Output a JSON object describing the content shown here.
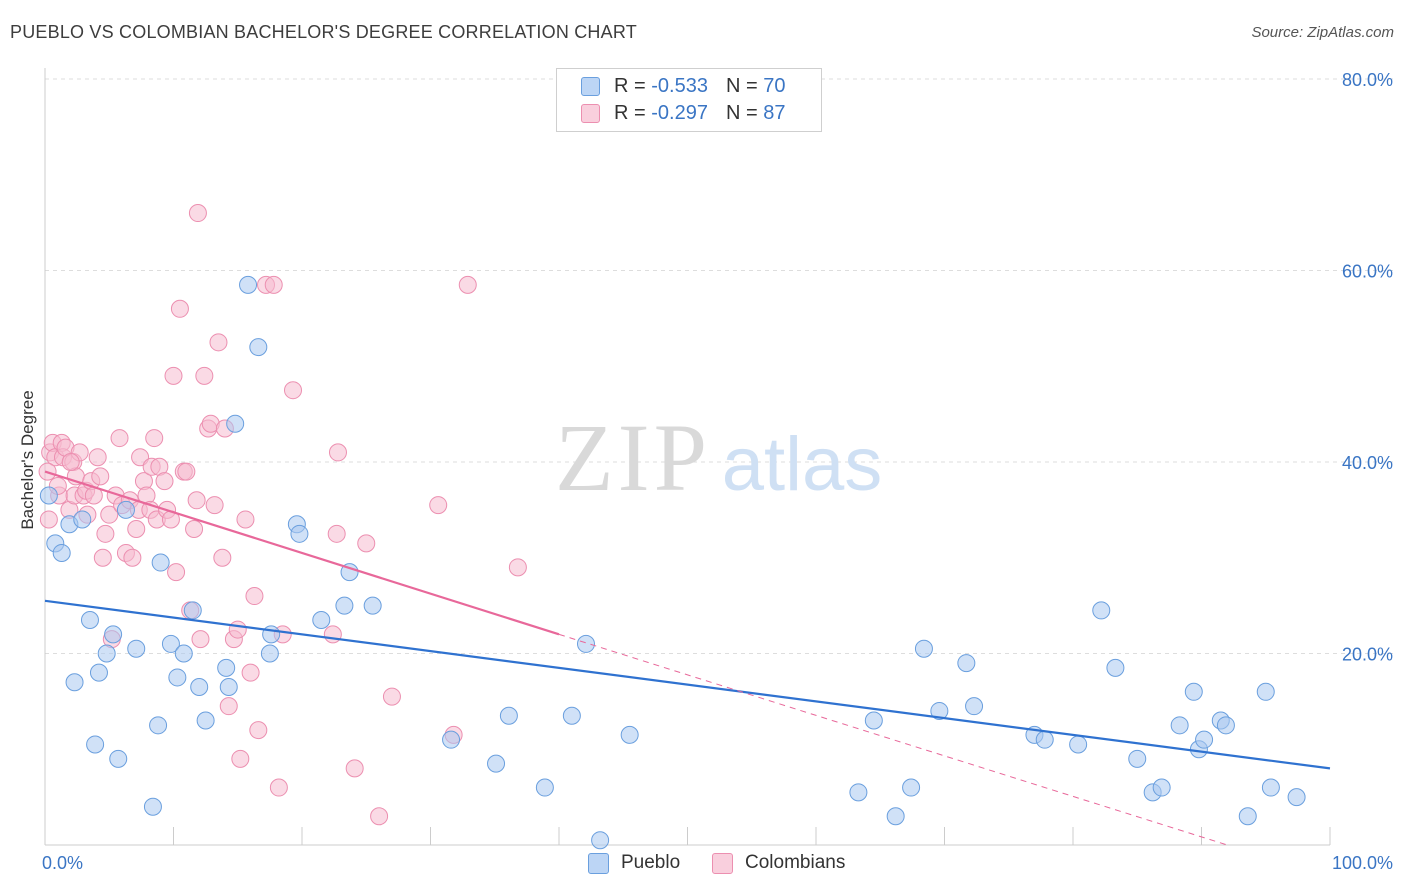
{
  "header": {
    "title": "PUEBLO VS COLOMBIAN BACHELOR'S DEGREE CORRELATION CHART",
    "source": "Source: ZipAtlas.com"
  },
  "watermark": {
    "zip": "ZIP",
    "atlas": "atlas"
  },
  "legend_top": {
    "rows": [
      {
        "r_label": "R =",
        "r_value": "-0.533",
        "n_label": "N =",
        "n_value": "70"
      },
      {
        "r_label": "R =",
        "r_value": "-0.297",
        "n_label": "N =",
        "n_value": "87"
      }
    ]
  },
  "legend_bottom": {
    "items": [
      "Pueblo",
      "Colombians"
    ]
  },
  "colors": {
    "pueblo_fill": "#a9c8f0",
    "pueblo_stroke": "#6a9fde",
    "pueblo_line": "#2f72d0",
    "colombians_fill": "#f6bcd0",
    "colombians_stroke": "#ec8fb0",
    "colombians_line": "#e8689a",
    "tick_label": "#3a75c4",
    "grid": "#dddddd"
  },
  "chart_data": {
    "type": "scatter",
    "title": "PUEBLO VS COLOMBIAN BACHELOR'S DEGREE CORRELATION CHART",
    "xlabel": "",
    "ylabel": "Bachelor's Degree",
    "xlim": [
      0,
      100
    ],
    "ylim": [
      0,
      80
    ],
    "x_tick_labels": [
      "0.0%",
      "100.0%"
    ],
    "y_ticks": [
      20,
      40,
      60,
      80
    ],
    "y_tick_labels": [
      "20.0%",
      "40.0%",
      "60.0%",
      "80.0%"
    ],
    "grid": "horizontal dashed",
    "legend_placement": "top-center",
    "series": [
      {
        "name": "Pueblo",
        "r": -0.533,
        "n": 70,
        "trend": {
          "x": [
            0,
            100
          ],
          "y": [
            25.5,
            8.0
          ],
          "dashed_extension": false
        },
        "points": [
          [
            0.3,
            36.5
          ],
          [
            0.8,
            31.5
          ],
          [
            1.3,
            30.5
          ],
          [
            1.9,
            33.5
          ],
          [
            2.3,
            17.0
          ],
          [
            2.9,
            34.0
          ],
          [
            3.5,
            23.5
          ],
          [
            3.9,
            10.5
          ],
          [
            4.2,
            18.0
          ],
          [
            4.8,
            20.0
          ],
          [
            5.3,
            22.0
          ],
          [
            5.7,
            9.0
          ],
          [
            6.3,
            35.0
          ],
          [
            7.1,
            20.5
          ],
          [
            8.4,
            4.0
          ],
          [
            8.8,
            12.5
          ],
          [
            9.0,
            29.5
          ],
          [
            9.8,
            21.0
          ],
          [
            10.3,
            17.5
          ],
          [
            10.8,
            20.0
          ],
          [
            11.5,
            24.5
          ],
          [
            12.0,
            16.5
          ],
          [
            12.5,
            13.0
          ],
          [
            14.1,
            18.5
          ],
          [
            14.3,
            16.5
          ],
          [
            14.8,
            44.0
          ],
          [
            15.8,
            58.5
          ],
          [
            16.6,
            52.0
          ],
          [
            17.5,
            20.0
          ],
          [
            17.6,
            22.0
          ],
          [
            19.6,
            33.5
          ],
          [
            19.8,
            32.5
          ],
          [
            21.5,
            23.5
          ],
          [
            23.3,
            25.0
          ],
          [
            23.7,
            28.5
          ],
          [
            25.5,
            25.0
          ],
          [
            31.6,
            11.0
          ],
          [
            35.1,
            8.5
          ],
          [
            36.1,
            13.5
          ],
          [
            38.9,
            6.0
          ],
          [
            41.0,
            13.5
          ],
          [
            42.1,
            21.0
          ],
          [
            43.2,
            0.5
          ],
          [
            45.5,
            11.5
          ],
          [
            63.3,
            5.5
          ],
          [
            64.5,
            13.0
          ],
          [
            66.2,
            3.0
          ],
          [
            67.4,
            6.0
          ],
          [
            68.4,
            20.5
          ],
          [
            69.6,
            14.0
          ],
          [
            71.7,
            19.0
          ],
          [
            72.3,
            14.5
          ],
          [
            77.0,
            11.5
          ],
          [
            77.8,
            11.0
          ],
          [
            80.4,
            10.5
          ],
          [
            82.2,
            24.5
          ],
          [
            83.3,
            18.5
          ],
          [
            85.0,
            9.0
          ],
          [
            86.2,
            5.5
          ],
          [
            86.9,
            6.0
          ],
          [
            88.3,
            12.5
          ],
          [
            89.4,
            16.0
          ],
          [
            89.8,
            10.0
          ],
          [
            90.2,
            11.0
          ],
          [
            91.5,
            13.0
          ],
          [
            91.9,
            12.5
          ],
          [
            93.6,
            3.0
          ],
          [
            95.0,
            16.0
          ],
          [
            95.4,
            6.0
          ],
          [
            97.4,
            5.0
          ]
        ]
      },
      {
        "name": "Colombians",
        "r": -0.297,
        "n": 87,
        "trend": {
          "x": [
            0,
            40
          ],
          "y": [
            39.0,
            22.0
          ],
          "dashed_x": [
            40,
            92
          ],
          "dashed_y": [
            22.0,
            0.0
          ]
        },
        "points": [
          [
            0.3,
            34.0
          ],
          [
            0.4,
            41.0
          ],
          [
            0.6,
            42.0
          ],
          [
            0.8,
            40.5
          ],
          [
            1.1,
            36.5
          ],
          [
            1.3,
            42.0
          ],
          [
            1.4,
            40.5
          ],
          [
            1.6,
            41.5
          ],
          [
            1.9,
            35.0
          ],
          [
            2.2,
            40.0
          ],
          [
            2.3,
            36.5
          ],
          [
            2.4,
            38.5
          ],
          [
            2.7,
            41.0
          ],
          [
            3.0,
            36.5
          ],
          [
            3.2,
            37.0
          ],
          [
            3.3,
            34.5
          ],
          [
            3.6,
            38.0
          ],
          [
            3.8,
            36.5
          ],
          [
            4.1,
            40.5
          ],
          [
            4.3,
            38.5
          ],
          [
            4.5,
            30.0
          ],
          [
            4.7,
            32.5
          ],
          [
            5.0,
            34.5
          ],
          [
            5.2,
            21.5
          ],
          [
            5.5,
            36.5
          ],
          [
            5.8,
            42.5
          ],
          [
            6.0,
            35.5
          ],
          [
            6.3,
            30.5
          ],
          [
            6.6,
            36.0
          ],
          [
            6.8,
            30.0
          ],
          [
            7.1,
            33.0
          ],
          [
            7.3,
            35.0
          ],
          [
            7.4,
            40.5
          ],
          [
            7.7,
            38.0
          ],
          [
            7.9,
            36.5
          ],
          [
            8.2,
            35.0
          ],
          [
            8.3,
            39.5
          ],
          [
            8.5,
            42.5
          ],
          [
            8.7,
            34.0
          ],
          [
            8.9,
            39.5
          ],
          [
            9.3,
            38.0
          ],
          [
            9.5,
            35.0
          ],
          [
            9.8,
            34.0
          ],
          [
            10.0,
            49.0
          ],
          [
            10.2,
            28.5
          ],
          [
            10.5,
            56.0
          ],
          [
            10.8,
            39.0
          ],
          [
            11.0,
            39.0
          ],
          [
            11.3,
            24.5
          ],
          [
            11.6,
            33.0
          ],
          [
            11.8,
            36.0
          ],
          [
            11.9,
            66.0
          ],
          [
            12.1,
            21.5
          ],
          [
            12.4,
            49.0
          ],
          [
            12.7,
            43.5
          ],
          [
            12.9,
            44.0
          ],
          [
            13.2,
            35.5
          ],
          [
            13.5,
            52.5
          ],
          [
            13.8,
            30.0
          ],
          [
            14.0,
            43.5
          ],
          [
            14.3,
            14.5
          ],
          [
            14.7,
            21.5
          ],
          [
            15.0,
            22.5
          ],
          [
            15.2,
            9.0
          ],
          [
            15.6,
            34.0
          ],
          [
            16.0,
            18.0
          ],
          [
            16.3,
            26.0
          ],
          [
            16.6,
            12.0
          ],
          [
            17.2,
            58.5
          ],
          [
            17.8,
            58.5
          ],
          [
            18.2,
            6.0
          ],
          [
            18.5,
            22.0
          ],
          [
            19.3,
            47.5
          ],
          [
            22.4,
            22.0
          ],
          [
            22.7,
            32.5
          ],
          [
            22.8,
            41.0
          ],
          [
            24.1,
            8.0
          ],
          [
            25.0,
            31.5
          ],
          [
            26.0,
            3.0
          ],
          [
            27.0,
            15.5
          ],
          [
            30.6,
            35.5
          ],
          [
            31.8,
            11.5
          ],
          [
            32.9,
            58.5
          ],
          [
            36.8,
            29.0
          ],
          [
            0.2,
            39.0
          ],
          [
            1.0,
            37.5
          ],
          [
            2.0,
            40.0
          ]
        ]
      }
    ]
  }
}
